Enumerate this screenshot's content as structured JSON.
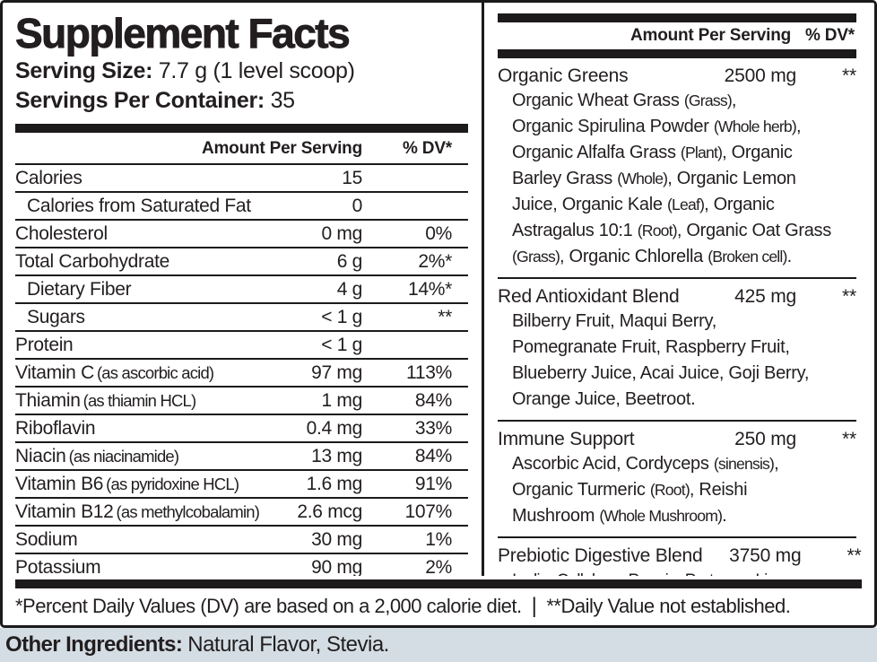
{
  "title": "Supplement Facts",
  "serving": {
    "size_label": "Serving Size:",
    "size_value": "7.7 g (1 level scoop)",
    "count_label": "Servings Per Container:",
    "count_value": "35"
  },
  "left_table": {
    "header": {
      "amount": "Amount Per Serving",
      "dv": "% DV*"
    },
    "rows": [
      {
        "label": "Calories",
        "note": "",
        "amount": "15",
        "dv": ""
      },
      {
        "label": "Calories from Saturated Fat",
        "note": "",
        "amount": "0",
        "dv": ""
      },
      {
        "label": "Cholesterol",
        "note": "",
        "amount": "0 mg",
        "dv": "0%"
      },
      {
        "label": "Total Carbohydrate",
        "note": "",
        "amount": "6 g",
        "dv": "2%*"
      },
      {
        "label": "Dietary Fiber",
        "note": "",
        "amount": "4 g",
        "dv": "14%*"
      },
      {
        "label": "Sugars",
        "note": "",
        "amount": "< 1 g",
        "dv": "**"
      },
      {
        "label": "Protein",
        "note": "",
        "amount": "< 1 g",
        "dv": ""
      },
      {
        "label": "Vitamin C",
        "note": "(as ascorbic acid)",
        "amount": "97 mg",
        "dv": "113%"
      },
      {
        "label": "Thiamin",
        "note": "(as thiamin HCL)",
        "amount": "1 mg",
        "dv": "84%"
      },
      {
        "label": "Riboflavin",
        "note": "",
        "amount": "0.4 mg",
        "dv": "33%"
      },
      {
        "label": "Niacin",
        "note": "(as niacinamide)",
        "amount": "13 mg",
        "dv": "84%"
      },
      {
        "label": "Vitamin B6",
        "note": "(as pyridoxine HCL)",
        "amount": "1.6 mg",
        "dv": "91%"
      },
      {
        "label": "Vitamin B12",
        "note": "(as methylcobalamin)",
        "amount": "2.6 mcg",
        "dv": "107%"
      },
      {
        "label": "Sodium",
        "note": "",
        "amount": "30 mg",
        "dv": "1%"
      },
      {
        "label": "Potassium",
        "note": "",
        "amount": "90 mg",
        "dv": "2%"
      }
    ]
  },
  "right_table": {
    "header": {
      "amount": "Amount Per Serving",
      "dv": "% DV*"
    },
    "blends": [
      {
        "name": "Organic Greens",
        "amount": "2500 mg",
        "dv": "**",
        "ingredients": "Organic Wheat Grass (Grass),\nOrganic Spirulina Powder (Whole herb),\nOrganic Alfalfa Grass (Plant), Organic\nBarley Grass (Whole), Organic Lemon\nJuice, Organic Kale (Leaf), Organic\nAstragalus 10:1 (Root), Organic Oat Grass\n(Grass), Organic Chlorella (Broken cell)."
      },
      {
        "name": "Red Antioxidant Blend",
        "amount": "425 mg",
        "dv": "**",
        "ingredients": "Bilberry Fruit, Maqui Berry,\nPomegranate Fruit, Raspberry Fruit,\nBlueberry Juice, Acai Juice, Goji Berry,\nOrange Juice, Beetroot."
      },
      {
        "name": "Immune Support",
        "amount": "250 mg",
        "dv": "**",
        "ingredients": "Ascorbic Acid, Cordyceps (sinensis),\nOrganic Turmeric (Root), Reishi\nMushroom (Whole Mushroom)."
      },
      {
        "name": "Prebiotic Digestive Blend",
        "amount": "3750 mg",
        "dv": "**",
        "ingredients": "Inulin, Cellulase, Papain, Protease, Lipase."
      }
    ]
  },
  "footnote": {
    "dv_note": "*Percent Daily Values (DV) are based on a 2,000 calorie diet.",
    "separator": "|",
    "nd_note": "**Daily Value not established."
  },
  "other_ingredients": {
    "label": "Other Ingredients:",
    "value": "Natural Flavor, Stevia."
  }
}
